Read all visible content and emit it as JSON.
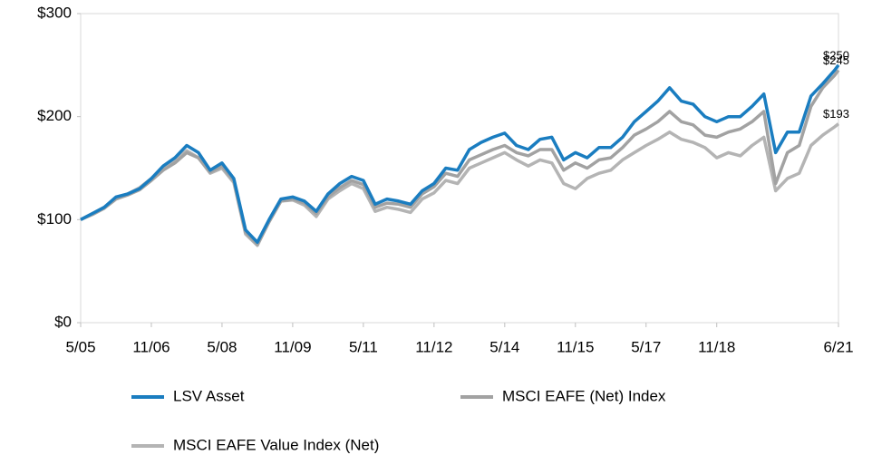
{
  "chart_data": {
    "type": "line",
    "x": [
      "5/05",
      "8/05",
      "11/05",
      "2/06",
      "5/06",
      "8/06",
      "11/06",
      "2/07",
      "5/07",
      "8/07",
      "11/07",
      "2/08",
      "5/08",
      "8/08",
      "11/08",
      "2/09",
      "5/09",
      "8/09",
      "11/09",
      "2/10",
      "5/10",
      "8/10",
      "11/10",
      "2/11",
      "5/11",
      "8/11",
      "11/11",
      "2/12",
      "5/12",
      "8/12",
      "11/12",
      "2/13",
      "5/13",
      "8/13",
      "11/13",
      "2/14",
      "5/14",
      "8/14",
      "11/14",
      "2/15",
      "5/15",
      "8/15",
      "11/15",
      "2/16",
      "5/16",
      "8/16",
      "11/16",
      "2/17",
      "5/17",
      "8/17",
      "11/17",
      "2/18",
      "5/18",
      "8/18",
      "11/18",
      "2/19",
      "5/19",
      "8/19",
      "11/19",
      "2/20",
      "5/20",
      "8/20",
      "11/20",
      "2/21",
      "5/21",
      "6/21"
    ],
    "series": [
      {
        "name": "MSCI EAFE Value Index (Net)",
        "color": "#b4b4b4",
        "end_label": "$193",
        "values": [
          100,
          106,
          112,
          121,
          125,
          131,
          140,
          150,
          158,
          167,
          160,
          145,
          150,
          136,
          86,
          75,
          98,
          118,
          119,
          114,
          103,
          120,
          128,
          135,
          130,
          108,
          112,
          110,
          107,
          120,
          126,
          138,
          135,
          150,
          155,
          160,
          165,
          158,
          152,
          158,
          155,
          135,
          130,
          140,
          145,
          148,
          158,
          165,
          172,
          178,
          185,
          178,
          175,
          170,
          160,
          165,
          162,
          172,
          180,
          128,
          140,
          145,
          172,
          182,
          190,
          193
        ]
      },
      {
        "name": "MSCI EAFE (Net) Index",
        "color": "#a2a2a2",
        "end_label": "$245",
        "values": [
          100,
          105,
          111,
          120,
          124,
          129,
          138,
          148,
          155,
          165,
          160,
          146,
          152,
          138,
          88,
          76,
          98,
          118,
          120,
          116,
          106,
          122,
          131,
          138,
          134,
          112,
          116,
          115,
          112,
          125,
          132,
          145,
          142,
          158,
          163,
          168,
          172,
          165,
          162,
          168,
          168,
          148,
          155,
          150,
          158,
          160,
          170,
          182,
          188,
          195,
          205,
          195,
          192,
          182,
          180,
          185,
          188,
          195,
          205,
          135,
          165,
          172,
          210,
          228,
          240,
          245
        ]
      },
      {
        "name": "LSV Asset",
        "color": "#1a7dc0",
        "end_label": "$250",
        "values": [
          100,
          106,
          112,
          122,
          125,
          130,
          140,
          152,
          160,
          172,
          165,
          148,
          155,
          140,
          90,
          78,
          100,
          120,
          122,
          118,
          108,
          125,
          135,
          142,
          138,
          115,
          120,
          118,
          115,
          128,
          135,
          150,
          148,
          168,
          175,
          180,
          184,
          172,
          168,
          178,
          180,
          158,
          165,
          160,
          170,
          170,
          180,
          195,
          205,
          215,
          228,
          215,
          212,
          200,
          195,
          200,
          200,
          210,
          222,
          165,
          185,
          185,
          220,
          232,
          245,
          250
        ]
      }
    ],
    "xlim": [
      "5/05",
      "6/21"
    ],
    "xticks": [
      "5/05",
      "11/06",
      "5/08",
      "11/09",
      "5/11",
      "11/12",
      "5/14",
      "11/15",
      "5/17",
      "11/18",
      "6/21"
    ],
    "ylim": [
      0,
      300
    ],
    "yticks": [
      {
        "value": 0,
        "label": "$0"
      },
      {
        "value": 100,
        "label": "$100"
      },
      {
        "value": 200,
        "label": "$200"
      },
      {
        "value": 300,
        "label": "$300"
      }
    ],
    "grid": false
  }
}
